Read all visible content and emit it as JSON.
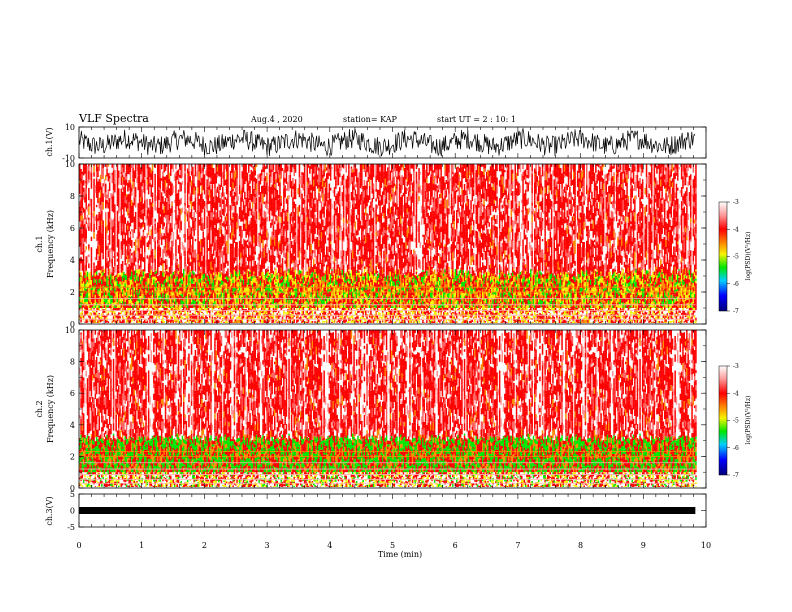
{
  "header": {
    "title": "VLF Spectra",
    "date": "Aug.4 , 2020",
    "station": "station= KAP",
    "start": "start UT = 2 : 10: 1"
  },
  "chart_data": [
    {
      "type": "line",
      "id": "ch1-waveform",
      "ylabel": "ch.1(V)",
      "ylim": [
        -10,
        10
      ],
      "yticks": [
        "10",
        "-10"
      ],
      "xlim": [
        0,
        10
      ],
      "x_end": 9.83,
      "description_color": "#000000"
    },
    {
      "type": "heatmap",
      "id": "ch1-spectrogram",
      "ylabel": "ch.1\nFrequency (kHz)",
      "ylabel_line1": "ch.1",
      "ylabel_line2": "Frequency (kHz)",
      "ylim": [
        0,
        10
      ],
      "yticks": [
        "0",
        "2",
        "4",
        "6",
        "8",
        "10"
      ],
      "xlim": [
        0,
        10
      ],
      "x_end": 9.83,
      "colorbar": {
        "label": "log(PSD)(V²/Hz)",
        "range": [
          -7,
          -3
        ],
        "ticks": [
          "-3",
          "-4",
          "-5",
          "-6",
          "-7"
        ]
      }
    },
    {
      "type": "heatmap",
      "id": "ch2-spectrogram",
      "ylabel": "ch.2\nFrequency (kHz)",
      "ylabel_line1": "ch.2",
      "ylabel_line2": "Frequency (kHz)",
      "ylim": [
        0,
        10
      ],
      "yticks": [
        "0",
        "2",
        "4",
        "6",
        "8",
        "10"
      ],
      "xlim": [
        0,
        10
      ],
      "x_end": 9.83,
      "colorbar": {
        "label": "log(PSD)(V²/Hz)",
        "range": [
          -7,
          -3
        ],
        "ticks": [
          "-3",
          "-4",
          "-5",
          "-6",
          "-7"
        ]
      }
    },
    {
      "type": "line",
      "id": "ch3-waveform",
      "ylabel": "ch.3(V)",
      "ylim": [
        -5,
        5
      ],
      "yticks": [
        "5",
        "0",
        "-5"
      ],
      "xlim": [
        0,
        10
      ],
      "x_end": 9.83
    }
  ],
  "xaxis": {
    "label": "Time (min)",
    "ticks": [
      "0",
      "1",
      "2",
      "3",
      "4",
      "5",
      "6",
      "7",
      "8",
      "9",
      "10"
    ]
  },
  "colors": {
    "white": "#ffffff",
    "red": "#ff0000",
    "orange": "#ff8c00",
    "yellow": "#f5f500",
    "green": "#00e600",
    "cyan": "#00d0ff",
    "blue": "#0000ff",
    "navy": "#00007a"
  }
}
